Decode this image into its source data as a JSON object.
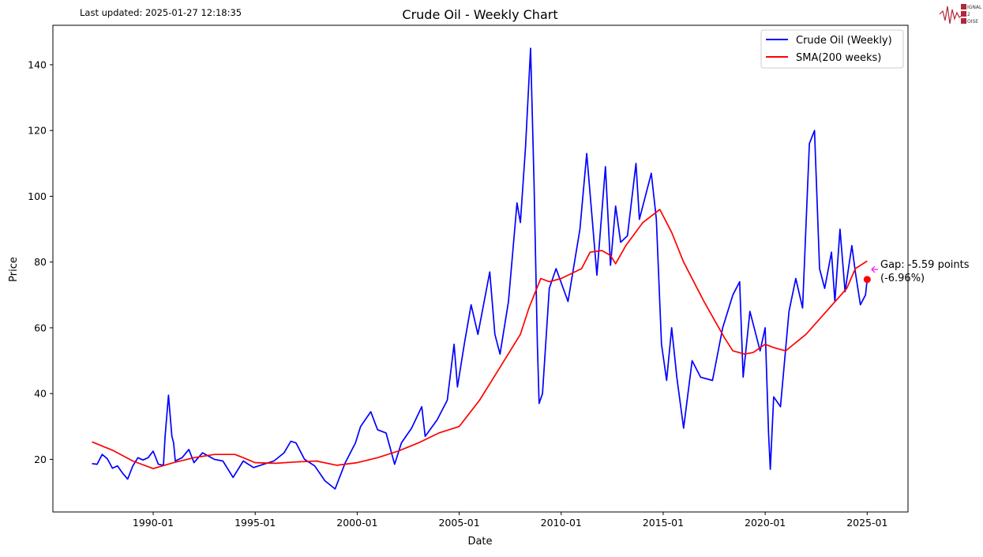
{
  "updated_text": "Last updated: 2025-01-27 12:18:35",
  "logo": {
    "lines": [
      "IGNAL",
      "2",
      "OISE"
    ],
    "color": "#b3263a"
  },
  "chart_data": {
    "type": "line",
    "title": "Crude Oil - Weekly Chart",
    "xlabel": "Date",
    "ylabel": "Price",
    "x_ticks": [
      "1990-01",
      "1995-01",
      "2000-01",
      "2005-01",
      "2010-01",
      "2015-01",
      "2020-01",
      "2025-01"
    ],
    "y_ticks": [
      20,
      40,
      60,
      80,
      100,
      120,
      140
    ],
    "xlim": [
      "1985-02",
      "2027-01"
    ],
    "ylim": [
      4,
      152
    ],
    "legend": {
      "placement": "top-right"
    },
    "grid": false,
    "series": [
      {
        "name": "Crude Oil (Weekly)",
        "color": "#0000ff",
        "points": [
          [
            "1987-01",
            18.7
          ],
          [
            "1987-04",
            18.5
          ],
          [
            "1987-07",
            21.5
          ],
          [
            "1987-10",
            20.2
          ],
          [
            "1988-01",
            17.3
          ],
          [
            "1988-04",
            18.0
          ],
          [
            "1988-07",
            15.8
          ],
          [
            "1988-10",
            14.0
          ],
          [
            "1989-01",
            18.0
          ],
          [
            "1989-04",
            20.5
          ],
          [
            "1989-07",
            19.8
          ],
          [
            "1989-10",
            20.5
          ],
          [
            "1990-01",
            22.5
          ],
          [
            "1990-04",
            18.5
          ],
          [
            "1990-07",
            18.2
          ],
          [
            "1990-08",
            27.0
          ],
          [
            "1990-10",
            39.5
          ],
          [
            "1990-12",
            27.0
          ],
          [
            "1991-01",
            25.0
          ],
          [
            "1991-02",
            19.5
          ],
          [
            "1991-06",
            20.5
          ],
          [
            "1991-10",
            23.0
          ],
          [
            "1992-01",
            19.0
          ],
          [
            "1992-06",
            22.0
          ],
          [
            "1993-01",
            20.0
          ],
          [
            "1993-06",
            19.5
          ],
          [
            "1993-12",
            14.5
          ],
          [
            "1994-06",
            19.5
          ],
          [
            "1994-12",
            17.5
          ],
          [
            "1995-06",
            18.5
          ],
          [
            "1995-12",
            19.5
          ],
          [
            "1996-06",
            22.0
          ],
          [
            "1996-10",
            25.5
          ],
          [
            "1997-01",
            25.0
          ],
          [
            "1997-06",
            20.0
          ],
          [
            "1997-12",
            18.0
          ],
          [
            "1998-06",
            13.5
          ],
          [
            "1998-12",
            11.0
          ],
          [
            "1999-06",
            19.0
          ],
          [
            "1999-12",
            25.0
          ],
          [
            "2000-03",
            30.0
          ],
          [
            "2000-09",
            34.5
          ],
          [
            "2001-01",
            29.0
          ],
          [
            "2001-06",
            28.0
          ],
          [
            "2001-11",
            18.5
          ],
          [
            "2002-03",
            25.0
          ],
          [
            "2002-09",
            29.5
          ],
          [
            "2003-03",
            36.0
          ],
          [
            "2003-05",
            27.0
          ],
          [
            "2003-12",
            32.0
          ],
          [
            "2004-06",
            38.0
          ],
          [
            "2004-10",
            55.0
          ],
          [
            "2004-12",
            42.0
          ],
          [
            "2005-04",
            55.0
          ],
          [
            "2005-08",
            67.0
          ],
          [
            "2005-12",
            58.0
          ],
          [
            "2006-07",
            77.0
          ],
          [
            "2006-10",
            58.0
          ],
          [
            "2007-01",
            52.0
          ],
          [
            "2007-06",
            68.0
          ],
          [
            "2007-11",
            98.0
          ],
          [
            "2008-01",
            92.0
          ],
          [
            "2008-04",
            115.0
          ],
          [
            "2008-07",
            145.0
          ],
          [
            "2008-09",
            105.0
          ],
          [
            "2008-11",
            55.0
          ],
          [
            "2008-12",
            37.0
          ],
          [
            "2009-02",
            40.0
          ],
          [
            "2009-06",
            72.0
          ],
          [
            "2009-10",
            78.0
          ],
          [
            "2010-05",
            68.0
          ],
          [
            "2010-12",
            90.0
          ],
          [
            "2011-04",
            113.0
          ],
          [
            "2011-10",
            76.0
          ],
          [
            "2012-03",
            109.0
          ],
          [
            "2012-06",
            79.0
          ],
          [
            "2012-09",
            97.0
          ],
          [
            "2012-12",
            86.0
          ],
          [
            "2013-04",
            88.0
          ],
          [
            "2013-09",
            110.0
          ],
          [
            "2013-11",
            93.0
          ],
          [
            "2014-06",
            107.0
          ],
          [
            "2014-09",
            93.0
          ],
          [
            "2014-12",
            55.0
          ],
          [
            "2015-03",
            44.0
          ],
          [
            "2015-06",
            60.0
          ],
          [
            "2015-09",
            45.0
          ],
          [
            "2016-01",
            29.5
          ],
          [
            "2016-06",
            50.0
          ],
          [
            "2016-11",
            45.0
          ],
          [
            "2017-06",
            44.0
          ],
          [
            "2017-12",
            60.0
          ],
          [
            "2018-06",
            70.0
          ],
          [
            "2018-10",
            74.0
          ],
          [
            "2018-12",
            45.0
          ],
          [
            "2019-04",
            65.0
          ],
          [
            "2019-10",
            53.0
          ],
          [
            "2020-01",
            60.0
          ],
          [
            "2020-03",
            28.0
          ],
          [
            "2020-04",
            17.0
          ],
          [
            "2020-06",
            39.0
          ],
          [
            "2020-10",
            36.0
          ],
          [
            "2021-03",
            65.0
          ],
          [
            "2021-07",
            75.0
          ],
          [
            "2021-11",
            66.0
          ],
          [
            "2022-03",
            116.0
          ],
          [
            "2022-06",
            120.0
          ],
          [
            "2022-09",
            78.0
          ],
          [
            "2022-12",
            72.0
          ],
          [
            "2023-04",
            83.0
          ],
          [
            "2023-06",
            68.0
          ],
          [
            "2023-09",
            90.0
          ],
          [
            "2023-12",
            71.0
          ],
          [
            "2024-04",
            85.0
          ],
          [
            "2024-06",
            77.0
          ],
          [
            "2024-09",
            67.0
          ],
          [
            "2024-12",
            70.0
          ],
          [
            "2025-01",
            74.7
          ]
        ]
      },
      {
        "name": "SMA(200 weeks)",
        "color": "#ff0000",
        "points": [
          [
            "1987-01",
            25.3
          ],
          [
            "1988-01",
            22.8
          ],
          [
            "1989-01",
            19.5
          ],
          [
            "1990-01",
            17.2
          ],
          [
            "1991-01",
            19.0
          ],
          [
            "1992-01",
            20.5
          ],
          [
            "1993-01",
            21.5
          ],
          [
            "1994-01",
            21.5
          ],
          [
            "1994-06",
            20.5
          ],
          [
            "1995-01",
            19.0
          ],
          [
            "1996-01",
            18.8
          ],
          [
            "1997-01",
            19.2
          ],
          [
            "1998-01",
            19.5
          ],
          [
            "1999-01",
            18.2
          ],
          [
            "2000-01",
            19.0
          ],
          [
            "2001-01",
            20.5
          ],
          [
            "2002-01",
            22.5
          ],
          [
            "2003-01",
            25.0
          ],
          [
            "2004-01",
            28.0
          ],
          [
            "2005-01",
            30.0
          ],
          [
            "2006-01",
            38.0
          ],
          [
            "2007-01",
            48.0
          ],
          [
            "2008-01",
            58.0
          ],
          [
            "2008-06",
            66.0
          ],
          [
            "2009-01",
            75.0
          ],
          [
            "2009-06",
            74.0
          ],
          [
            "2010-01",
            75.0
          ],
          [
            "2011-01",
            78.0
          ],
          [
            "2011-06",
            83.0
          ],
          [
            "2012-01",
            83.5
          ],
          [
            "2012-06",
            82.0
          ],
          [
            "2012-09",
            79.5
          ],
          [
            "2013-03",
            85.0
          ],
          [
            "2014-01",
            92.0
          ],
          [
            "2014-06",
            94.0
          ],
          [
            "2014-11",
            96.0
          ],
          [
            "2015-06",
            89.0
          ],
          [
            "2016-01",
            80.0
          ],
          [
            "2017-01",
            68.0
          ],
          [
            "2018-01",
            57.0
          ],
          [
            "2018-06",
            53.0
          ],
          [
            "2019-01",
            52.0
          ],
          [
            "2019-06",
            52.5
          ],
          [
            "2020-01",
            55.0
          ],
          [
            "2020-06",
            54.0
          ],
          [
            "2021-01",
            53.0
          ],
          [
            "2022-01",
            58.0
          ],
          [
            "2023-01",
            65.0
          ],
          [
            "2024-01",
            72.0
          ],
          [
            "2024-06",
            78.0
          ],
          [
            "2025-01",
            80.3
          ]
        ]
      }
    ],
    "marker": {
      "date": "2025-01",
      "value": 74.7,
      "color": "#ff0000"
    },
    "annotation": {
      "lines": [
        "Gap: -5.59 points",
        "(-6.96%)"
      ],
      "arrow_color": "#ff00ff",
      "text_color": "#000000"
    }
  }
}
